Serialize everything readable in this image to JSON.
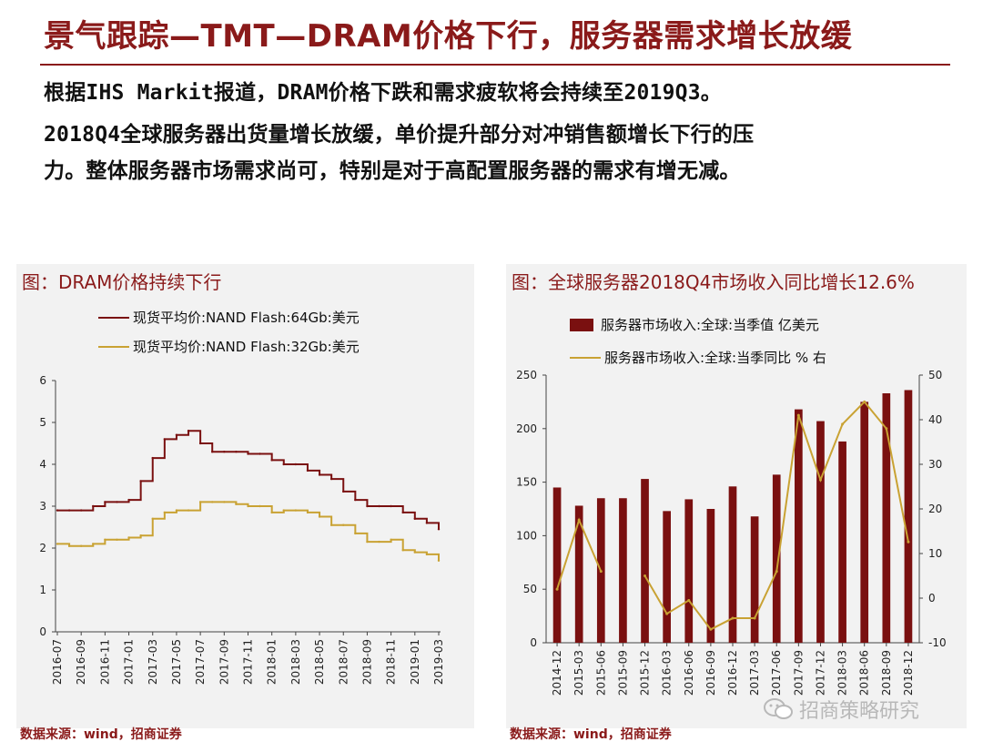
{
  "header": {
    "title": "景气跟踪—TMT—DRAM价格下行，服务器需求增长放缓",
    "para1": "根据IHS Markit报道，DRAM价格下跌和需求疲软将会持续至2019Q3。",
    "para2_line1": "2018Q4全球服务器出货量增长放缓，单价提升部分对冲销售额增长下行的压",
    "para2_line2": "力。整体服务器市场需求尚可，特别是对于高配置服务器的需求有增无减。"
  },
  "colors": {
    "brand": "#8a1a1a",
    "series64": "#7a1010",
    "series32": "#c9a233",
    "bar": "#7a1010",
    "yoy": "#c9a233"
  },
  "left_panel": {
    "title": "图：DRAM价格持续下行",
    "source": "数据来源：wind，招商证券"
  },
  "right_panel": {
    "title": "图：全球服务器2018Q4市场收入同比增长12.6%",
    "source": "数据来源：wind，招商证券"
  },
  "watermark": {
    "text": "招商策略研究",
    "icon": "wechat-icon"
  },
  "chart_data": [
    {
      "type": "line",
      "title": "图：DRAM价格持续下行",
      "ylim": [
        0,
        6
      ],
      "yticks": [
        "0",
        "1",
        "2",
        "3",
        "4",
        "5",
        "6"
      ],
      "xticks": [
        "2016-07",
        "2016-09",
        "2016-11",
        "2017-01",
        "2017-03",
        "2017-05",
        "2017-07",
        "2017-09",
        "2017-11",
        "2018-01",
        "2018-03",
        "2018-05",
        "2018-07",
        "2018-09",
        "2018-11",
        "2019-01",
        "2019-03"
      ],
      "x": [
        "2016-07",
        "2016-08",
        "2016-09",
        "2016-10",
        "2016-11",
        "2016-12",
        "2017-01",
        "2017-02",
        "2017-03",
        "2017-04",
        "2017-05",
        "2017-06",
        "2017-07",
        "2017-08",
        "2017-09",
        "2017-10",
        "2017-11",
        "2017-12",
        "2018-01",
        "2018-02",
        "2018-03",
        "2018-04",
        "2018-05",
        "2018-06",
        "2018-07",
        "2018-08",
        "2018-09",
        "2018-10",
        "2018-11",
        "2018-12",
        "2019-01",
        "2019-02",
        "2019-03"
      ],
      "series": [
        {
          "name": "现货平均价:NAND Flash:64Gb:美元",
          "values": [
            2.9,
            2.9,
            2.9,
            3.0,
            3.1,
            3.1,
            3.15,
            3.6,
            4.15,
            4.6,
            4.7,
            4.8,
            4.5,
            4.3,
            4.3,
            4.3,
            4.25,
            4.25,
            4.1,
            4.0,
            4.0,
            3.85,
            3.75,
            3.65,
            3.35,
            3.15,
            3.0,
            3.0,
            3.0,
            2.85,
            2.7,
            2.6,
            2.45
          ]
        },
        {
          "name": "现货平均价:NAND Flash:32Gb:美元",
          "values": [
            2.1,
            2.05,
            2.05,
            2.1,
            2.2,
            2.2,
            2.25,
            2.3,
            2.7,
            2.85,
            2.9,
            2.9,
            3.1,
            3.1,
            3.1,
            3.05,
            3.0,
            3.0,
            2.85,
            2.9,
            2.9,
            2.85,
            2.75,
            2.55,
            2.55,
            2.35,
            2.15,
            2.15,
            2.2,
            1.95,
            1.9,
            1.85,
            1.7
          ]
        }
      ]
    },
    {
      "type": "bar",
      "title": "图：全球服务器2018Q4市场收入同比增长12.6%",
      "categories": [
        "2014-12",
        "2015-03",
        "2015-06",
        "2015-09",
        "2015-12",
        "2016-03",
        "2016-06",
        "2016-09",
        "2016-12",
        "2017-03",
        "2017-06",
        "2017-09",
        "2017-12",
        "2018-03",
        "2018-06",
        "2018-09",
        "2018-12"
      ],
      "ylim_left": [
        0,
        250
      ],
      "yticks_left": [
        "0",
        "50",
        "100",
        "150",
        "200",
        "250"
      ],
      "ylim_right": [
        -10,
        50
      ],
      "yticks_right": [
        "-10",
        "0",
        "10",
        "20",
        "30",
        "40",
        "50"
      ],
      "series": [
        {
          "name": "服务器市场收入:全球:当季值 亿美元",
          "axis": "left",
          "values": [
            145,
            128,
            135,
            135,
            153,
            123,
            134,
            125,
            146,
            118,
            157,
            218,
            207,
            188,
            225,
            233,
            236
          ]
        },
        {
          "name": "服务器市场收入:全球:当季同比 % 右",
          "axis": "right",
          "values": [
            2,
            17.5,
            6,
            null,
            5,
            -3.5,
            -0.5,
            -7,
            -4.5,
            -4.5,
            6,
            41,
            26.5,
            39,
            44,
            38,
            12.6
          ]
        }
      ]
    }
  ]
}
